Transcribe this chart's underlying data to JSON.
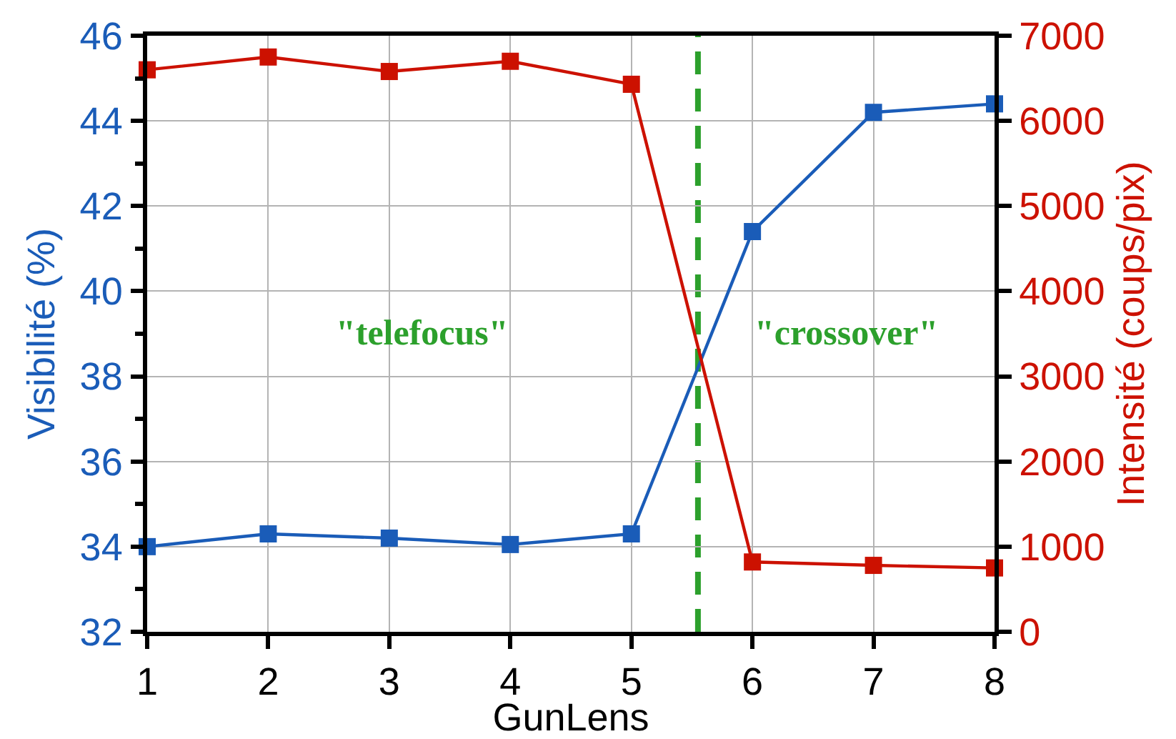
{
  "chart_data": {
    "type": "line",
    "xlabel": "GunLens",
    "ylabel": "Visibilité (%)",
    "y2label": "Intensité (coups/pix)",
    "x": [
      1,
      2,
      3,
      4,
      5,
      6,
      7,
      8
    ],
    "series": [
      {
        "color": "#1a5cb8",
        "values": [
          34.0,
          34.3,
          34.2,
          34.05,
          34.3,
          41.4,
          44.2,
          44.4
        ]
      },
      {
        "color": "#cc1100",
        "axis": "y2",
        "values": [
          6600,
          6750,
          6580,
          6700,
          6430,
          820,
          780,
          750
        ]
      }
    ],
    "xlim": [
      1,
      8
    ],
    "xticks": [
      1,
      2,
      3,
      4,
      5,
      6,
      7,
      8
    ],
    "ylim": [
      32,
      46
    ],
    "yticks": [
      32,
      {
        "value": 33,
        "label": null
      },
      34,
      {
        "value": 35,
        "label": null
      },
      36,
      {
        "value": 37,
        "label": null
      },
      38,
      {
        "value": 39,
        "label": null
      },
      40,
      {
        "value": 41,
        "label": null
      },
      42,
      {
        "value": 43,
        "label": null
      },
      44,
      {
        "value": 45,
        "label": null
      },
      46
    ],
    "y2lim": [
      0,
      7000
    ],
    "y2ticks": [
      0,
      1000,
      2000,
      3000,
      4000,
      5000,
      6000,
      7000
    ],
    "ref_lines": [
      {
        "axis": "x",
        "value": 5.55,
        "color": "#2ca02c",
        "line_style": "dashed"
      }
    ],
    "annotations": [
      "\"telefocus\"",
      "\"crossover\""
    ],
    "grid": true,
    "marker": "square",
    "line_style": "solid"
  }
}
